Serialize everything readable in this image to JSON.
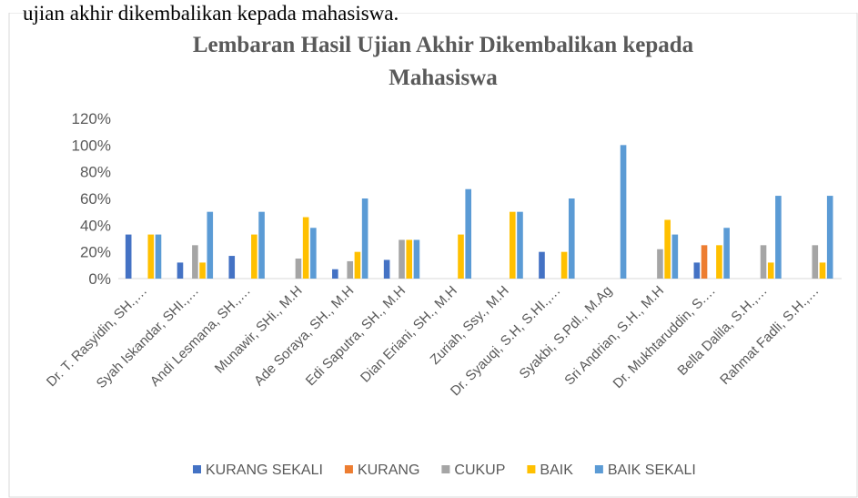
{
  "page_text": "ujian akhir dikembalikan kepada mahasiswa.",
  "chart_data": {
    "type": "bar",
    "title_lines": [
      "Lembaran Hasil Ujian Akhir Dikembalikan kepada",
      "Mahasiswa"
    ],
    "categories": [
      "Dr. T. Rasyidin, SH.,…",
      "Syah Iskandar, SHI.,…",
      "Andi Lesmana, SH.,…",
      "Munawir, SHi., M.H",
      "Ade Soraya, SH., M.H",
      "Edi Saputra, SH., M.H",
      "Dian Eriani, SH., M.H",
      "Zuriah, Ssy., M.H",
      "Dr. Syauqi, S.H, S.HI.,…",
      "Syakbi, S.Pdl., M.Ag",
      "Sri Andrian, S.H., M.H",
      "Dr. Mukhtaruddin, S.…",
      "Bella Dalila, S.H.,…",
      "Rahmat Fadli, S.H.,…"
    ],
    "series": [
      {
        "name": "KURANG SEKALI",
        "color": "#4472c4",
        "values": [
          33,
          12,
          17,
          0,
          7,
          14,
          0,
          0,
          20,
          0,
          0,
          12,
          0,
          0
        ]
      },
      {
        "name": "KURANG",
        "color": "#ed7d31",
        "values": [
          0,
          0,
          0,
          0,
          0,
          0,
          0,
          0,
          0,
          0,
          0,
          25,
          0,
          0
        ]
      },
      {
        "name": "CUKUP",
        "color": "#a5a5a5",
        "values": [
          0,
          25,
          0,
          15,
          13,
          29,
          0,
          0,
          0,
          0,
          22,
          0,
          25,
          25
        ]
      },
      {
        "name": "BAIK",
        "color": "#ffc000",
        "values": [
          33,
          12,
          33,
          46,
          20,
          29,
          33,
          50,
          20,
          0,
          44,
          25,
          12,
          12
        ]
      },
      {
        "name": "BAIK SEKALI",
        "color": "#5b9bd5",
        "values": [
          33,
          50,
          50,
          38,
          60,
          29,
          67,
          50,
          60,
          100,
          33,
          38,
          62,
          62
        ]
      }
    ],
    "ylim": [
      0,
      120
    ],
    "yticks": [
      {
        "value": 0,
        "label": "0%"
      },
      {
        "value": 20,
        "label": "20%"
      },
      {
        "value": 40,
        "label": "40%"
      },
      {
        "value": 60,
        "label": "60%"
      },
      {
        "value": 80,
        "label": "80%"
      },
      {
        "value": 100,
        "label": "100%"
      },
      {
        "value": 120,
        "label": "120%"
      }
    ],
    "legend": "bottom"
  }
}
